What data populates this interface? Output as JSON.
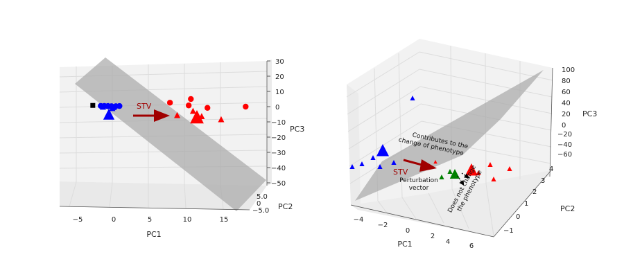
{
  "chart_data": [
    {
      "type": "scatter",
      "projection": "3d",
      "axes": {
        "x": {
          "label": "PC1",
          "ticks": [
            "−5",
            "0",
            "5",
            "10",
            "15"
          ]
        },
        "y": {
          "label": "PC2",
          "ticks": [
            "5.0",
            "0",
            "−5.0"
          ]
        },
        "z": {
          "label": "PC3",
          "ticks": [
            "30",
            "20",
            "10",
            "0",
            "−10",
            "−20",
            "−30",
            "−40",
            "−50"
          ]
        }
      },
      "plane": "separating hyperplane (gray)",
      "series": [
        {
          "marker": "circle",
          "color": "#0000ff",
          "points": [
            [
              -1.8,
              0,
              0.5
            ],
            [
              -1.3,
              0,
              0.5
            ],
            [
              -0.8,
              0,
              0.4
            ],
            [
              -0.3,
              0,
              0.3
            ],
            [
              0.3,
              0,
              0.3
            ],
            [
              0.8,
              0,
              0.4
            ]
          ]
        },
        {
          "marker": "triangle",
          "color": "#0000ff",
          "points": [
            [
              -1.5,
              0,
              -0.3
            ],
            [
              -0.7,
              0,
              0.2
            ],
            [
              0.0,
              0,
              -0.5
            ],
            [
              -0.2,
              0,
              -1.2
            ]
          ]
        },
        {
          "marker": "square",
          "color": "#000000",
          "points": [
            [
              -2.9,
              0,
              0.8
            ]
          ]
        },
        {
          "marker": "circle",
          "color": "#ff0000",
          "points": [
            [
              7.8,
              0,
              2.6
            ],
            [
              10.7,
              0,
              5.0
            ],
            [
              10.4,
              0,
              0.8
            ],
            [
              13.0,
              0,
              -0.8
            ],
            [
              18.3,
              0,
              0.0
            ]
          ]
        },
        {
          "marker": "triangle",
          "color": "#ff0000",
          "points": [
            [
              11.0,
              0,
              -3.0
            ],
            [
              8.8,
              0,
              -5.8
            ],
            [
              12.2,
              0,
              -6.5
            ],
            [
              14.9,
              0,
              -8.5
            ]
          ]
        }
      ],
      "annotations": [
        {
          "text": "STV"
        }
      ]
    },
    {
      "type": "scatter",
      "projection": "3d",
      "axes": {
        "x": {
          "label": "PC1",
          "ticks": [
            "−4",
            "−2",
            "0",
            "2",
            "4",
            "6"
          ]
        },
        "y": {
          "label": "PC2",
          "ticks": [
            "4",
            "3",
            "2",
            "1",
            "0",
            "−1"
          ]
        },
        "z": {
          "label": "PC3",
          "ticks": [
            "100",
            "80",
            "60",
            "40",
            "20",
            "0",
            "−20",
            "−40",
            "−60"
          ]
        }
      },
      "plane": "separating hyperplane (gray)",
      "series": [
        {
          "marker": "triangle",
          "color": "#0000ff",
          "count": 6
        },
        {
          "marker": "triangle",
          "color": "#ff0000",
          "count": 6
        },
        {
          "marker": "triangle",
          "color": "#008000",
          "count": 3
        }
      ],
      "annotations": [
        {
          "text": "STV"
        },
        {
          "text": "Contributes to the change of phenotype"
        },
        {
          "text": "Perturbation vector"
        },
        {
          "text": "Does not change the phenotype"
        }
      ]
    }
  ],
  "left": {
    "axis_labels": {
      "x": "PC1",
      "y": "PC2",
      "z": "PC3"
    },
    "x_ticks": [
      "−5",
      "0",
      "5",
      "10",
      "15"
    ],
    "y_ticks": [
      "5.0",
      "0",
      "−5.0"
    ],
    "z_ticks": [
      "30",
      "20",
      "10",
      "0",
      "−10",
      "−20",
      "−30",
      "−40",
      "−50"
    ],
    "stv_label": "STV"
  },
  "right": {
    "axis_labels": {
      "x": "PC1",
      "y": "PC2",
      "z": "PC3"
    },
    "x_ticks": [
      "−4",
      "−2",
      "0",
      "2",
      "4",
      "6"
    ],
    "y_ticks": [
      "4",
      "3",
      "2",
      "1",
      "0",
      "−1"
    ],
    "z_ticks": [
      "100",
      "80",
      "60",
      "40",
      "20",
      "0",
      "−20",
      "−40",
      "−60"
    ],
    "stv_label": "STV",
    "contributes_line1": "Contributes to the",
    "contributes_line2": "change of phenotype",
    "perturbation_line1": "Perturbation",
    "perturbation_line2": "vector",
    "no_change_line1": "Does not change",
    "no_change_line2": "the phenotype"
  }
}
